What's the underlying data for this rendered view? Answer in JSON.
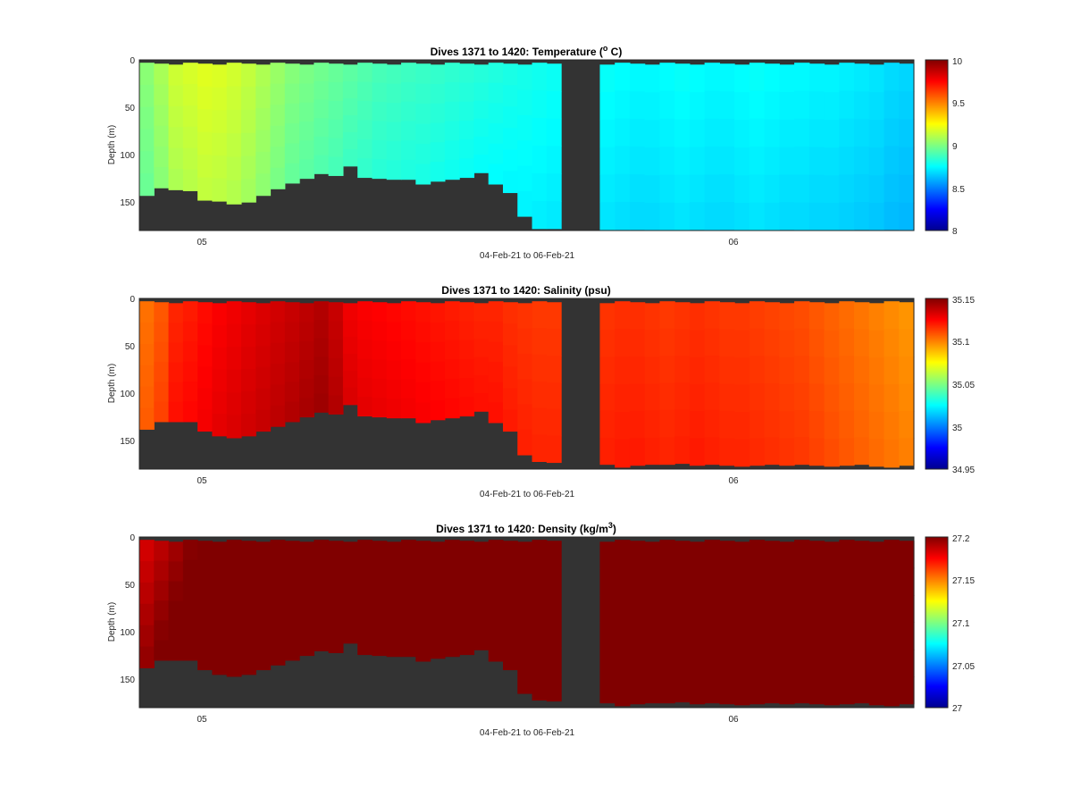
{
  "chart_data": [
    {
      "type": "heatmap",
      "title": "Dives 1371 to 1420: Temperature (°C)",
      "title_prefix": "Dives 1371 to 1420: Temperature (",
      "title_sup": "o",
      "title_suffix": " C)",
      "xlabel": "04-Feb-21 to 06-Feb-21",
      "ylabel": "Depth (m)",
      "x_ticks": [
        "05",
        "06"
      ],
      "x_tick_days": [
        5,
        6
      ],
      "xlim_days": [
        4.885,
        6.345
      ],
      "ylim": [
        0,
        180
      ],
      "y_ticks": [
        0,
        50,
        100,
        150
      ],
      "y_reversed": true,
      "colormap": "jet",
      "clim": [
        8,
        10
      ],
      "colorbar_ticks": [
        "8",
        "8.5",
        "9",
        "9.5",
        "10"
      ],
      "colorbar_tick_values": [
        8,
        8.5,
        9,
        9.5,
        10
      ],
      "no_data_color": "#333333",
      "gap_days": [
        5.68,
        5.753
      ],
      "max_depth_profile": [
        143,
        135,
        137,
        138,
        148,
        149,
        152,
        150,
        143,
        136,
        130,
        125,
        120,
        122,
        112,
        124,
        125,
        126,
        126,
        131,
        128,
        126,
        124,
        119,
        131,
        140,
        165,
        178,
        178,
        179,
        179,
        179,
        180,
        180,
        180,
        179,
        180,
        179,
        180,
        180,
        180,
        179,
        180,
        180,
        180,
        180,
        179,
        180,
        179,
        180
      ],
      "values_by_dive": [
        8.99,
        9.05,
        9.12,
        9.14,
        9.16,
        9.15,
        9.13,
        9.1,
        9.06,
        9.02,
        8.98,
        8.96,
        8.94,
        8.92,
        8.9,
        8.88,
        8.86,
        8.85,
        8.84,
        8.83,
        8.82,
        8.81,
        8.8,
        8.79,
        8.78,
        8.77,
        8.76,
        8.75,
        8.74,
        8.73,
        8.72,
        8.71,
        8.71,
        8.72,
        8.73,
        8.72,
        8.71,
        8.71,
        8.72,
        8.73,
        8.72,
        8.71,
        8.71,
        8.7,
        8.7,
        8.69,
        8.68,
        8.67,
        8.65,
        8.64
      ],
      "depth_trend": -0.06
    },
    {
      "type": "heatmap",
      "title": "Dives 1371 to 1420: Salinity (psu)",
      "title_prefix": "Dives 1371 to 1420: Salinity (psu)",
      "title_sup": "",
      "title_suffix": "",
      "xlabel": "04-Feb-21 to 06-Feb-21",
      "ylabel": "Depth (m)",
      "x_ticks": [
        "05",
        "06"
      ],
      "x_tick_days": [
        5,
        6
      ],
      "xlim_days": [
        4.885,
        6.345
      ],
      "ylim": [
        0,
        180
      ],
      "y_ticks": [
        0,
        50,
        100,
        150
      ],
      "y_reversed": true,
      "colormap": "jet",
      "clim": [
        34.95,
        35.15
      ],
      "colorbar_ticks": [
        "34.95",
        "35",
        "35.05",
        "35.1",
        "35.15"
      ],
      "colorbar_tick_values": [
        34.95,
        35,
        35.05,
        35.1,
        35.15
      ],
      "no_data_color": "#333333",
      "gap_days": [
        5.68,
        5.753
      ],
      "max_depth_profile": [
        138,
        130,
        130,
        130,
        140,
        145,
        147,
        145,
        140,
        135,
        130,
        125,
        120,
        122,
        112,
        124,
        125,
        126,
        126,
        131,
        128,
        126,
        124,
        119,
        131,
        140,
        165,
        172,
        173,
        175,
        178,
        176,
        175,
        175,
        174,
        176,
        175,
        176,
        177,
        176,
        175,
        176,
        175,
        176,
        177,
        176,
        175,
        177,
        178,
        176
      ],
      "values_by_dive": [
        35.105,
        35.11,
        35.12,
        35.122,
        35.125,
        35.128,
        35.13,
        35.132,
        35.134,
        35.136,
        35.138,
        35.14,
        35.142,
        35.138,
        35.13,
        35.128,
        35.127,
        35.126,
        35.125,
        35.124,
        35.123,
        35.122,
        35.121,
        35.12,
        35.12,
        35.118,
        35.117,
        35.116,
        35.116,
        35.117,
        35.118,
        35.118,
        35.117,
        35.116,
        35.117,
        35.118,
        35.117,
        35.116,
        35.116,
        35.115,
        35.114,
        35.113,
        35.112,
        35.11,
        35.108,
        35.106,
        35.104,
        35.102,
        35.1,
        35.098
      ],
      "depth_trend": 0.004
    },
    {
      "type": "heatmap",
      "title": "Dives 1371 to 1420: Density (kg/m³)",
      "title_prefix": "Dives 1371 to 1420: Density (kg/m",
      "title_sup": "3",
      "title_suffix": ")",
      "xlabel": "04-Feb-21 to 06-Feb-21",
      "ylabel": "Depth (m)",
      "x_ticks": [
        "05",
        "06"
      ],
      "x_tick_days": [
        5,
        6
      ],
      "xlim_days": [
        4.885,
        6.345
      ],
      "ylim": [
        0,
        180
      ],
      "y_ticks": [
        0,
        50,
        100,
        150
      ],
      "y_reversed": true,
      "colormap": "jet",
      "clim": [
        27,
        27.2
      ],
      "colorbar_ticks": [
        "27",
        "27.05",
        "27.1",
        "27.15",
        "27.2"
      ],
      "colorbar_tick_values": [
        27,
        27.05,
        27.1,
        27.15,
        27.2
      ],
      "no_data_color": "#333333",
      "gap_days": [
        5.68,
        5.753
      ],
      "max_depth_profile": [
        138,
        130,
        130,
        130,
        140,
        145,
        147,
        145,
        140,
        135,
        130,
        125,
        120,
        122,
        112,
        124,
        125,
        126,
        126,
        131,
        128,
        126,
        124,
        119,
        131,
        140,
        165,
        172,
        173,
        175,
        178,
        176,
        175,
        175,
        174,
        176,
        175,
        176,
        177,
        176,
        175,
        176,
        175,
        176,
        177,
        176,
        175,
        177,
        178,
        176
      ],
      "values_by_dive": [
        27.19,
        27.195,
        27.2,
        27.205,
        27.21,
        27.21,
        27.21,
        27.21,
        27.21,
        27.21,
        27.21,
        27.21,
        27.21,
        27.21,
        27.21,
        27.21,
        27.21,
        27.21,
        27.21,
        27.21,
        27.21,
        27.21,
        27.21,
        27.21,
        27.21,
        27.21,
        27.21,
        27.21,
        27.21,
        27.21,
        27.21,
        27.21,
        27.21,
        27.21,
        27.21,
        27.21,
        27.21,
        27.21,
        27.21,
        27.21,
        27.21,
        27.21,
        27.21,
        27.21,
        27.21,
        27.21,
        27.21,
        27.21,
        27.21,
        27.21
      ],
      "depth_trend": 0.012
    }
  ]
}
